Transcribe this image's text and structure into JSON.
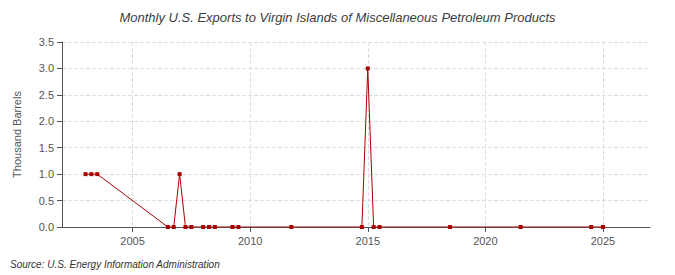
{
  "chart_data": {
    "type": "line",
    "title": "Monthly U.S. Exports to Virgin Islands of Miscellaneous Petroleum Products",
    "ylabel": "Thousand Barrels",
    "annotation": "Source: U.S. Energy Information Administration",
    "x": [
      2003.0,
      2003.25,
      2003.5,
      2006.5,
      2006.75,
      2007.0,
      2007.25,
      2007.5,
      2008.0,
      2008.25,
      2008.5,
      2009.25,
      2009.5,
      2011.75,
      2014.75,
      2015.0,
      2015.25,
      2015.5,
      2018.5,
      2021.5,
      2024.5,
      2025.0
    ],
    "values": [
      1.0,
      1.0,
      1.0,
      0.0,
      0.0,
      1.0,
      0.0,
      0.0,
      0.0,
      0.0,
      0.0,
      0.0,
      0.0,
      0.0,
      0.0,
      3.0,
      0.0,
      0.0,
      0.0,
      0.0,
      0.0,
      0.0
    ],
    "color": "#aa0000",
    "marker": "square",
    "line_style": "solid",
    "xlim": [
      2002,
      2027
    ],
    "xticks": [
      2005,
      2010,
      2015,
      2020,
      2025
    ],
    "ylim": [
      0,
      3.5
    ],
    "yticks": [
      {
        "value": 0,
        "label": "0.0"
      },
      0.5,
      {
        "value": 1,
        "label": "1.0"
      },
      1.5,
      {
        "value": 2,
        "label": "2.0"
      },
      2.5,
      {
        "value": 3,
        "label": "3.0"
      },
      3.5
    ],
    "grid": true
  }
}
